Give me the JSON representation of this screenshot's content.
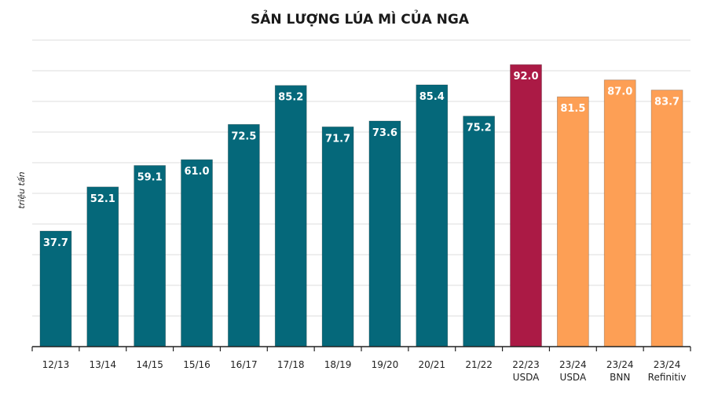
{
  "chart_data": {
    "type": "bar",
    "title": "SẢN LƯỢNG LÚA MÌ CỦA NGA",
    "xlabel": "",
    "ylabel": "triệu tấn",
    "ylim": [
      0,
      100
    ],
    "ytick_step": 10,
    "grid": true,
    "show_y_tick_labels": false,
    "categories": [
      [
        "12/13"
      ],
      [
        "13/14"
      ],
      [
        "14/15"
      ],
      [
        "15/16"
      ],
      [
        "16/17"
      ],
      [
        "17/18"
      ],
      [
        "18/19"
      ],
      [
        "19/20"
      ],
      [
        "20/21"
      ],
      [
        "21/22"
      ],
      [
        "22/23",
        "USDA"
      ],
      [
        "23/24",
        "USDA"
      ],
      [
        "23/24",
        "BNN"
      ],
      [
        "23/24",
        "Refinitiv"
      ]
    ],
    "values": [
      37.7,
      52.1,
      59.1,
      61.0,
      72.5,
      85.2,
      71.7,
      73.6,
      85.4,
      75.2,
      92.0,
      81.5,
      87.0,
      83.7
    ],
    "data_labels": [
      "37.7",
      "52.1",
      "59.1",
      "61.0",
      "72.5",
      "85.2",
      "71.7",
      "73.6",
      "85.4",
      "75.2",
      "92.0",
      "81.5",
      "87.0",
      "83.7"
    ],
    "bar_groups": [
      "historical",
      "historical",
      "historical",
      "historical",
      "historical",
      "historical",
      "historical",
      "historical",
      "historical",
      "historical",
      "estimate",
      "forecast",
      "forecast",
      "forecast"
    ],
    "colors": {
      "historical": "#05687a",
      "estimate": "#ab1a45",
      "forecast": "#fd9f55",
      "grid": "#dedede",
      "axis": "#222222"
    }
  }
}
